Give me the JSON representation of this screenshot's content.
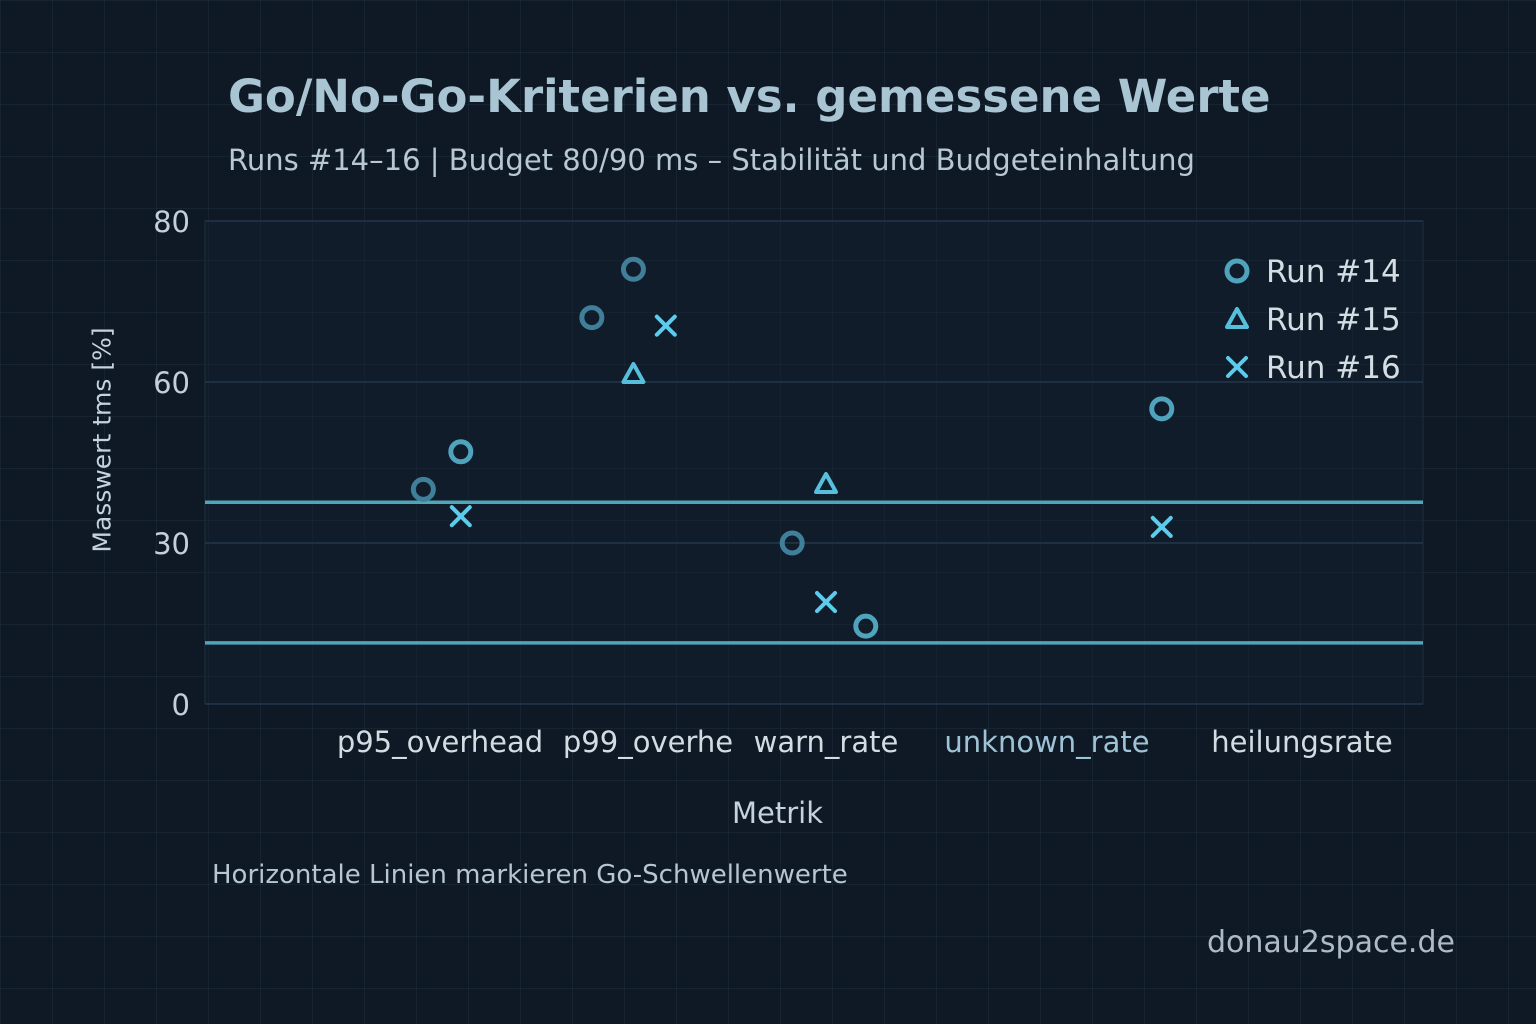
{
  "chart_data": {
    "type": "scatter",
    "title": "Go/No-Go-Kriterien vs. gemessene Werte",
    "subtitle": "Runs #14–16 | Budget 80/90 ms – Stabilität und Budgeteinhaltung",
    "xlabel": "Metrik",
    "ylabel": "Masswert tms [%]",
    "categories": [
      "p95_overhead",
      "p99_overhe",
      "warn_rate",
      "unknown_rate",
      "heilungsrate"
    ],
    "y_ticks": [
      0,
      30,
      60,
      80
    ],
    "ylim": [
      0,
      80
    ],
    "grid": true,
    "legend_position": "top-right",
    "thresholds": [
      37.6,
      11.4
    ],
    "series": [
      {
        "name": "Run #14",
        "marker": "circle",
        "color": "#4fa3bd",
        "points": [
          {
            "x": -0.08,
            "y": 40,
            "shade": "#3f7f9a"
          },
          {
            "x": 0.1,
            "y": 47
          },
          {
            "x": 0.73,
            "y": 68,
            "shade": "#3f7f9a"
          },
          {
            "x": 0.93,
            "y": 74,
            "shade": "#3f7f9a"
          },
          {
            "x": 1.81,
            "y": 30,
            "shade": "#3f7f9a"
          },
          {
            "x": 2.18,
            "y": 14.5
          },
          {
            "x": 3.45,
            "y": 55
          }
        ]
      },
      {
        "name": "Run #15",
        "marker": "triangle",
        "color": "#56bfdc",
        "points": [
          {
            "x": 0.93,
            "y": 61
          },
          {
            "x": 2.0,
            "y": 41
          }
        ]
      },
      {
        "name": "Run #16",
        "marker": "x",
        "color": "#5ccbec",
        "points": [
          {
            "x": 0.1,
            "y": 35
          },
          {
            "x": 1.1,
            "y": 67
          },
          {
            "x": 2.0,
            "y": 19
          },
          {
            "x": 3.45,
            "y": 33
          }
        ]
      }
    ],
    "note": "Horizontale Linien markieren Go-Schwellenwerte"
  },
  "brand": "donau2space.de"
}
